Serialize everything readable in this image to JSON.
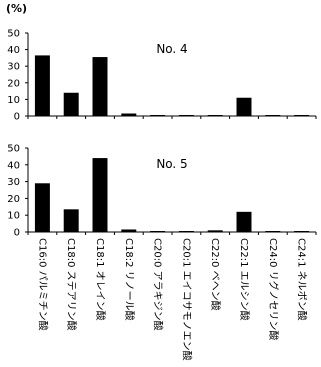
{
  "unit_label": "(%)",
  "chart_data": [
    {
      "type": "bar",
      "title": "No. 4",
      "ylim": [
        0,
        50
      ],
      "yticks": [
        0,
        10,
        20,
        30,
        40,
        50
      ],
      "categories": [
        "C16:0 パルミチン酸",
        "C18:0 ステアリン酸",
        "C18:1 オレイン酸",
        "C18:2 リノール酸",
        "C20:0 アラキジン酸",
        "C20:1 エイコサモノエン酸",
        "C22:0 ベヘン酸",
        "C22:1 エルシン酸",
        "C24:0 リグノセリン酸",
        "C24:1 ネルボン酸"
      ],
      "values": [
        36.5,
        14,
        35.5,
        1.5,
        0.5,
        0.5,
        0.5,
        11,
        0.5,
        0.3
      ],
      "grid": false
    },
    {
      "type": "bar",
      "title": "No. 5",
      "ylim": [
        0,
        50
      ],
      "yticks": [
        0,
        10,
        20,
        30,
        40,
        50
      ],
      "categories": [
        "C16:0 パルミチン酸",
        "C18:0 ステアリン酸",
        "C18:1 オレイン酸",
        "C18:2 リノール酸",
        "C20:0 アラキジン酸",
        "C20:1 エイコサモノエン酸",
        "C22:0 ベヘン酸",
        "C22:1 エルシン酸",
        "C24:0 リグノセリン酸",
        "C24:1 ネルボン酸"
      ],
      "values": [
        29,
        13.5,
        44,
        1.5,
        0.5,
        0.3,
        1,
        12,
        0.3,
        0.3
      ],
      "grid": false
    }
  ]
}
